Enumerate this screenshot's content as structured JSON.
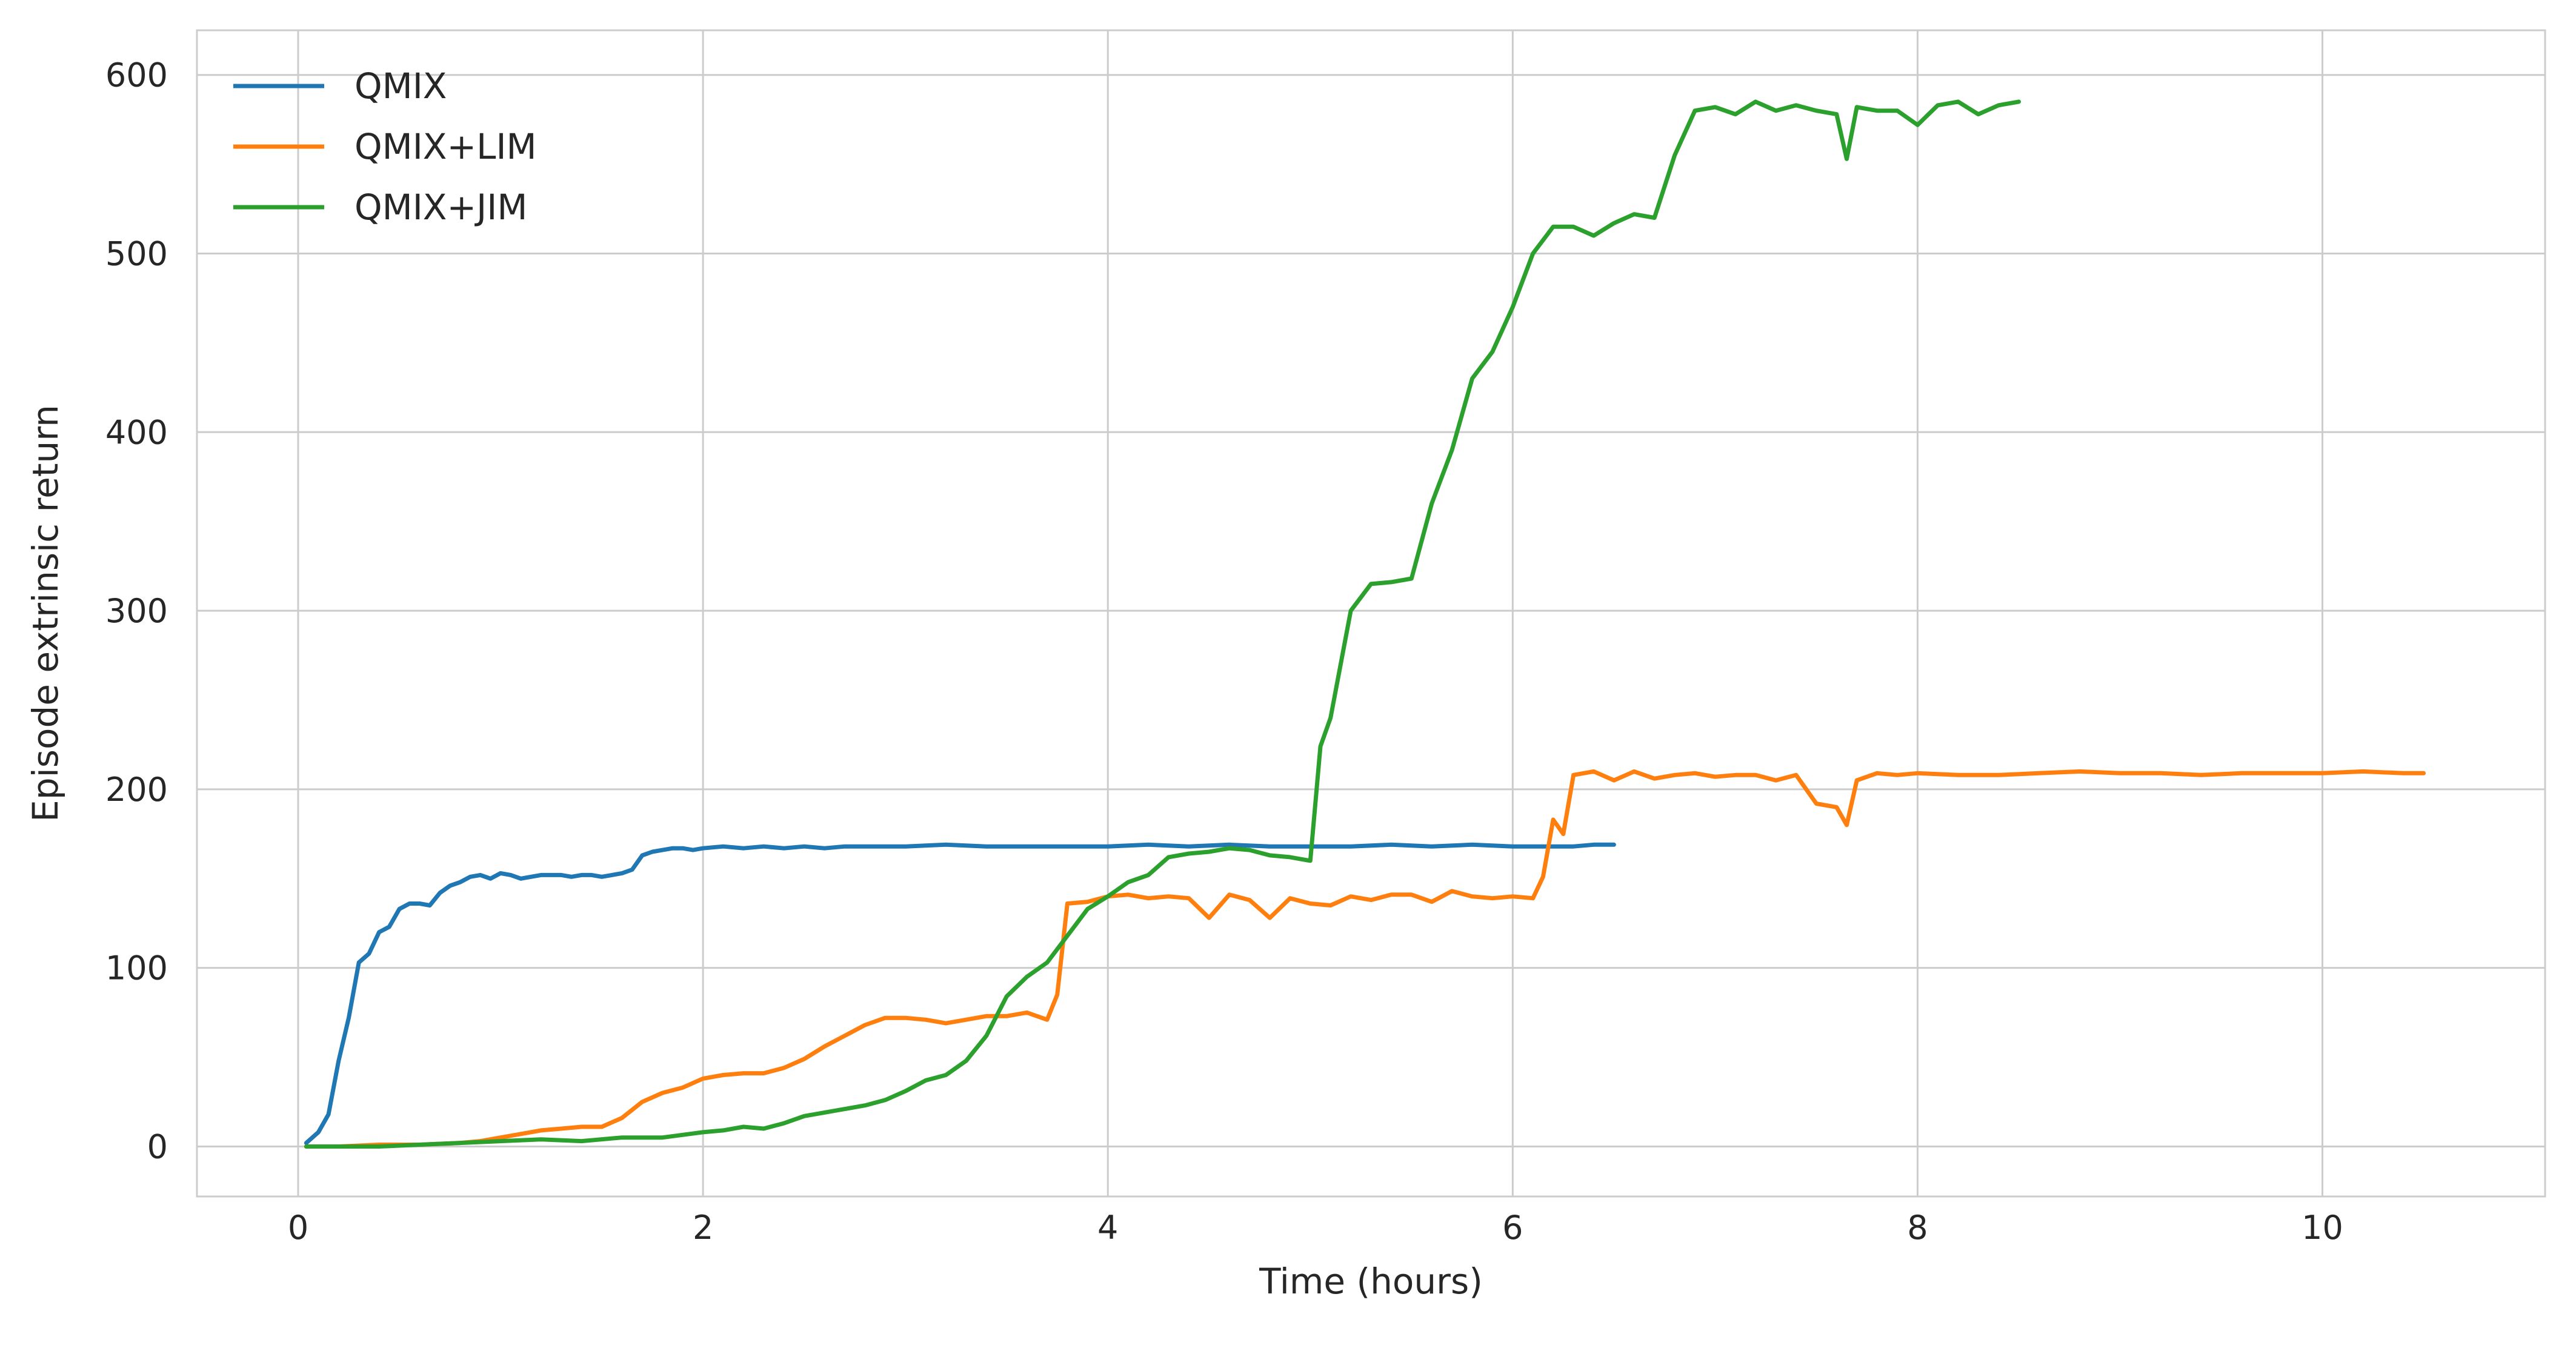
{
  "chart_data": {
    "type": "line",
    "title": "",
    "xlabel": "Time (hours)",
    "ylabel": "Episode extrinsic return",
    "xlim": [
      -0.5,
      11.1
    ],
    "ylim": [
      -28,
      625
    ],
    "xticks": [
      0,
      2,
      4,
      6,
      8,
      10
    ],
    "yticks": [
      0,
      100,
      200,
      300,
      400,
      500,
      600
    ],
    "grid": true,
    "legend_position": "top-left",
    "colors": {
      "QMIX": "#1f77b4",
      "QMIX+LIM": "#ff7f0e",
      "QMIX+JIM": "#2ca02c"
    },
    "series": [
      {
        "name": "QMIX",
        "x": [
          0.04,
          0.1,
          0.15,
          0.2,
          0.25,
          0.3,
          0.35,
          0.4,
          0.45,
          0.5,
          0.55,
          0.6,
          0.65,
          0.7,
          0.75,
          0.8,
          0.85,
          0.9,
          0.95,
          1.0,
          1.05,
          1.1,
          1.15,
          1.2,
          1.25,
          1.3,
          1.35,
          1.4,
          1.45,
          1.5,
          1.55,
          1.6,
          1.65,
          1.7,
          1.75,
          1.8,
          1.85,
          1.9,
          1.95,
          2.0,
          2.1,
          2.2,
          2.3,
          2.4,
          2.5,
          2.6,
          2.7,
          2.8,
          2.9,
          3.0,
          3.2,
          3.4,
          3.6,
          3.8,
          4.0,
          4.2,
          4.4,
          4.6,
          4.8,
          5.0,
          5.2,
          5.4,
          5.6,
          5.8,
          6.0,
          6.2,
          6.3,
          6.4,
          6.5
        ],
        "y": [
          2,
          8,
          18,
          48,
          72,
          103,
          108,
          120,
          123,
          133,
          136,
          136,
          135,
          142,
          146,
          148,
          151,
          152,
          150,
          153,
          152,
          150,
          151,
          152,
          152,
          152,
          151,
          152,
          152,
          151,
          152,
          153,
          155,
          163,
          165,
          166,
          167,
          167,
          166,
          167,
          168,
          167,
          168,
          167,
          168,
          167,
          168,
          168,
          168,
          168,
          169,
          168,
          168,
          168,
          168,
          169,
          168,
          169,
          168,
          168,
          168,
          169,
          168,
          169,
          168,
          168,
          168,
          169,
          169
        ]
      },
      {
        "name": "QMIX+LIM",
        "x": [
          0.04,
          0.2,
          0.4,
          0.6,
          0.8,
          0.9,
          1.0,
          1.1,
          1.2,
          1.3,
          1.4,
          1.5,
          1.6,
          1.7,
          1.8,
          1.9,
          2.0,
          2.1,
          2.2,
          2.3,
          2.4,
          2.5,
          2.6,
          2.7,
          2.8,
          2.9,
          3.0,
          3.1,
          3.2,
          3.3,
          3.4,
          3.5,
          3.6,
          3.7,
          3.75,
          3.8,
          3.9,
          4.0,
          4.1,
          4.2,
          4.3,
          4.4,
          4.5,
          4.6,
          4.7,
          4.8,
          4.9,
          5.0,
          5.1,
          5.2,
          5.3,
          5.4,
          5.5,
          5.6,
          5.7,
          5.8,
          5.9,
          6.0,
          6.1,
          6.15,
          6.2,
          6.25,
          6.3,
          6.4,
          6.5,
          6.6,
          6.7,
          6.8,
          6.9,
          7.0,
          7.1,
          7.2,
          7.3,
          7.4,
          7.5,
          7.6,
          7.65,
          7.7,
          7.8,
          7.9,
          8.0,
          8.2,
          8.4,
          8.6,
          8.8,
          9.0,
          9.2,
          9.4,
          9.6,
          9.8,
          10.0,
          10.2,
          10.4,
          10.5
        ],
        "y": [
          0,
          0,
          1,
          1,
          2,
          3,
          5,
          7,
          9,
          10,
          11,
          11,
          16,
          25,
          30,
          33,
          38,
          40,
          41,
          41,
          44,
          49,
          56,
          62,
          68,
          72,
          72,
          71,
          69,
          71,
          73,
          73,
          75,
          71,
          85,
          136,
          137,
          140,
          141,
          139,
          140,
          139,
          128,
          141,
          138,
          128,
          139,
          136,
          135,
          140,
          138,
          141,
          141,
          137,
          143,
          140,
          139,
          140,
          139,
          151,
          183,
          175,
          208,
          210,
          205,
          210,
          206,
          208,
          209,
          207,
          208,
          208,
          205,
          208,
          192,
          190,
          180,
          205,
          209,
          208,
          209,
          208,
          208,
          209,
          210,
          209,
          209,
          208,
          209,
          209,
          209,
          210,
          209,
          209
        ]
      },
      {
        "name": "QMIX+JIM",
        "x": [
          0.04,
          0.2,
          0.4,
          0.6,
          0.8,
          1.0,
          1.2,
          1.4,
          1.6,
          1.8,
          2.0,
          2.1,
          2.2,
          2.3,
          2.4,
          2.5,
          2.6,
          2.7,
          2.8,
          2.9,
          3.0,
          3.1,
          3.2,
          3.3,
          3.4,
          3.5,
          3.6,
          3.7,
          3.8,
          3.9,
          4.0,
          4.1,
          4.2,
          4.3,
          4.4,
          4.5,
          4.6,
          4.7,
          4.8,
          4.9,
          5.0,
          5.05,
          5.1,
          5.2,
          5.3,
          5.4,
          5.5,
          5.6,
          5.7,
          5.8,
          5.9,
          6.0,
          6.1,
          6.2,
          6.3,
          6.4,
          6.5,
          6.6,
          6.7,
          6.8,
          6.9,
          7.0,
          7.1,
          7.2,
          7.3,
          7.4,
          7.5,
          7.6,
          7.65,
          7.7,
          7.8,
          7.9,
          8.0,
          8.1,
          8.2,
          8.3,
          8.4,
          8.5
        ],
        "y": [
          0,
          0,
          0,
          1,
          2,
          3,
          4,
          3,
          5,
          5,
          8,
          9,
          11,
          10,
          13,
          17,
          19,
          21,
          23,
          26,
          31,
          37,
          40,
          48,
          62,
          84,
          95,
          103,
          118,
          133,
          140,
          148,
          152,
          162,
          164,
          165,
          167,
          166,
          163,
          162,
          160,
          224,
          240,
          300,
          315,
          316,
          318,
          360,
          390,
          430,
          445,
          470,
          500,
          515,
          515,
          510,
          517,
          522,
          520,
          555,
          580,
          582,
          578,
          585,
          580,
          583,
          580,
          578,
          553,
          582,
          580,
          580,
          572,
          583,
          585,
          578,
          583,
          585
        ]
      }
    ]
  }
}
